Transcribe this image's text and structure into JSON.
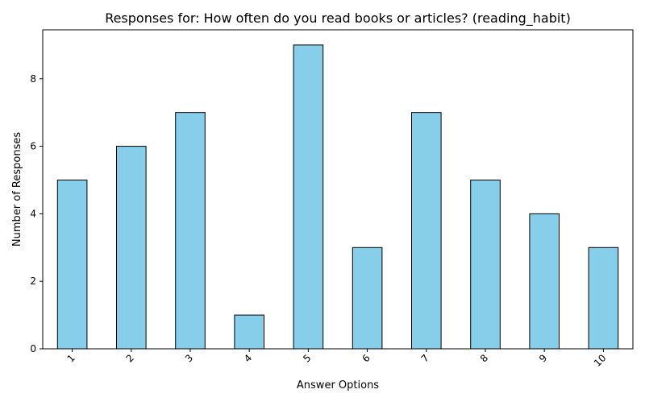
{
  "chart_data": {
    "type": "bar",
    "title": "Responses for: How often do you read books or articles? (reading_habit)",
    "xlabel": "Answer Options",
    "ylabel": "Number of Responses",
    "categories": [
      "1",
      "2",
      "3",
      "4",
      "5",
      "6",
      "7",
      "8",
      "9",
      "10"
    ],
    "values": [
      5,
      6,
      7,
      1,
      9,
      3,
      7,
      5,
      4,
      3
    ],
    "ylim": [
      0,
      9.45
    ],
    "yticks": [
      0,
      2,
      4,
      6,
      8
    ],
    "grid": false,
    "legend": "none",
    "colors": {
      "bar_fill": "#87ceeb",
      "bar_edge": "#000000",
      "axis": "#000000"
    }
  }
}
